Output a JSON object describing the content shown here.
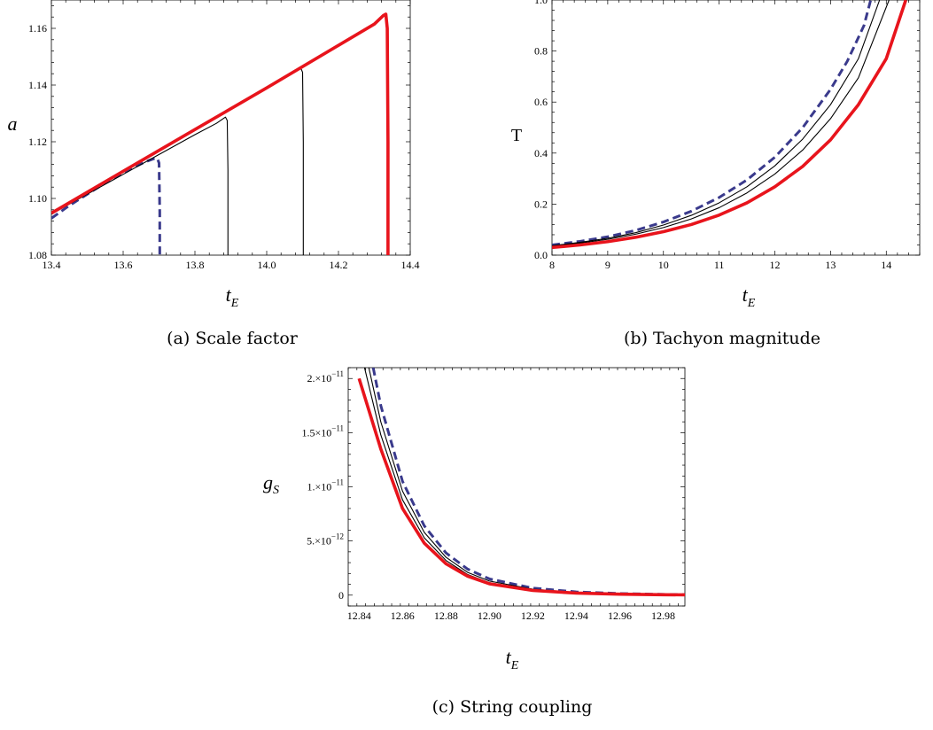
{
  "chart_data": [
    {
      "type": "line",
      "id": "a",
      "caption": "(a) Scale factor",
      "xlabel": "t",
      "xlabel_sub": "E",
      "ylabel": "a",
      "xlim": [
        13.4,
        14.4
      ],
      "ylim": [
        1.08,
        1.17
      ],
      "xticks": [
        13.4,
        13.6,
        13.8,
        14.0,
        14.2,
        14.4
      ],
      "xtick_labels": [
        "13.4",
        "13.6",
        "13.8",
        "14.0",
        "14.2",
        "14.4"
      ],
      "yticks": [
        1.08,
        1.1,
        1.12,
        1.14,
        1.16
      ],
      "ytick_labels": [
        "1.08",
        "1.10",
        "1.12",
        "1.14",
        "1.16"
      ],
      "grid": false,
      "series": [
        {
          "style": "dashed-blue",
          "color": "#3a3a8c",
          "x": [
            13.4,
            13.45,
            13.5,
            13.55,
            13.6,
            13.63,
            13.66,
            13.685,
            13.695,
            13.7,
            13.702,
            13.702
          ],
          "y": [
            1.093,
            1.0975,
            1.1015,
            1.1055,
            1.109,
            1.111,
            1.1128,
            1.114,
            1.1142,
            1.1125,
            1.095,
            1.08
          ]
        },
        {
          "style": "thin-black",
          "color": "#000000",
          "x": [
            13.4,
            13.5,
            13.6,
            13.7,
            13.8,
            13.86,
            13.885,
            13.89,
            13.892,
            13.892
          ],
          "y": [
            1.0945,
            1.1015,
            1.1085,
            1.1155,
            1.1225,
            1.1265,
            1.1287,
            1.1275,
            1.11,
            1.08
          ]
        },
        {
          "style": "thin-black",
          "color": "#000000",
          "x": [
            13.4,
            13.6,
            13.8,
            14.0,
            14.07,
            14.095,
            14.1,
            14.102,
            14.102
          ],
          "y": [
            1.0948,
            1.1095,
            1.124,
            1.139,
            1.1443,
            1.146,
            1.1445,
            1.12,
            1.08
          ]
        },
        {
          "style": "thick-red",
          "color": "#e8141c",
          "x": [
            13.4,
            13.6,
            13.8,
            14.0,
            14.2,
            14.3,
            14.325,
            14.332,
            14.336,
            14.338,
            14.338
          ],
          "y": [
            1.0948,
            1.1096,
            1.1243,
            1.139,
            1.154,
            1.1615,
            1.1645,
            1.165,
            1.16,
            1.12,
            1.08
          ]
        }
      ]
    },
    {
      "type": "line",
      "id": "b",
      "caption": "(b) Tachyon magnitude",
      "xlabel": "t",
      "xlabel_sub": "E",
      "ylabel": "T",
      "xlim": [
        8,
        14.6
      ],
      "ylim": [
        0,
        1
      ],
      "xticks": [
        8,
        9,
        10,
        11,
        12,
        13,
        14
      ],
      "xtick_labels": [
        "8",
        "9",
        "10",
        "11",
        "12",
        "13",
        "14"
      ],
      "yticks": [
        0,
        0.2,
        0.4,
        0.6,
        0.8,
        1.0
      ],
      "ytick_labels": [
        "0.0",
        "0.2",
        "0.4",
        "0.6",
        "0.8",
        "1.0"
      ],
      "grid": false,
      "series": [
        {
          "style": "dashed-blue",
          "color": "#3a3a8c",
          "x": [
            8,
            8.5,
            9,
            9.5,
            10,
            10.5,
            11,
            11.5,
            12,
            12.5,
            13,
            13.3,
            13.6,
            13.72
          ],
          "y": [
            0.04,
            0.054,
            0.072,
            0.097,
            0.13,
            0.172,
            0.226,
            0.295,
            0.384,
            0.5,
            0.65,
            0.76,
            0.9,
            1.0
          ]
        },
        {
          "style": "thin-black",
          "color": "#000000",
          "x": [
            8,
            8.5,
            9,
            9.5,
            10,
            10.5,
            11,
            11.5,
            12,
            12.5,
            13,
            13.5,
            13.88
          ],
          "y": [
            0.037,
            0.05,
            0.066,
            0.088,
            0.118,
            0.156,
            0.205,
            0.268,
            0.35,
            0.455,
            0.59,
            0.77,
            1.0
          ]
        },
        {
          "style": "thin-black",
          "color": "#000000",
          "x": [
            8,
            8.5,
            9,
            9.5,
            10,
            10.5,
            11,
            11.5,
            12,
            12.5,
            13,
            13.5,
            14.05
          ],
          "y": [
            0.035,
            0.047,
            0.062,
            0.082,
            0.108,
            0.142,
            0.186,
            0.244,
            0.318,
            0.412,
            0.535,
            0.695,
            1.0
          ]
        },
        {
          "style": "thick-red",
          "color": "#e8141c",
          "x": [
            8,
            8.5,
            9,
            9.5,
            10,
            10.5,
            11,
            11.5,
            12,
            12.5,
            13,
            13.5,
            14,
            14.35
          ],
          "y": [
            0.03,
            0.04,
            0.053,
            0.07,
            0.092,
            0.12,
            0.157,
            0.205,
            0.268,
            0.348,
            0.452,
            0.59,
            0.77,
            1.0
          ]
        }
      ]
    },
    {
      "type": "line",
      "id": "c",
      "caption": "(c) String coupling",
      "xlabel": "t",
      "xlabel_sub": "E",
      "ylabel": "g",
      "ylabel_sub": "S",
      "xlim": [
        12.835,
        12.99
      ],
      "ylim": [
        -1e-12,
        2.1e-11
      ],
      "xticks": [
        12.84,
        12.86,
        12.88,
        12.9,
        12.92,
        12.94,
        12.96,
        12.98
      ],
      "xtick_labels": [
        "12.84",
        "12.86",
        "12.88",
        "12.90",
        "12.92",
        "12.94",
        "12.96",
        "12.98"
      ],
      "yticks": [
        0,
        5e-12,
        1e-11,
        1.5e-11,
        2e-11
      ],
      "ytick_labels": [
        {
          "mantissa": "0",
          "exp": ""
        },
        {
          "mantissa": "5.×10",
          "exp": "−12"
        },
        {
          "mantissa": "1.×10",
          "exp": "−11"
        },
        {
          "mantissa": "1.5×10",
          "exp": "−11"
        },
        {
          "mantissa": "2.×10",
          "exp": "−11"
        }
      ],
      "grid": false,
      "series": [
        {
          "style": "dashed-blue",
          "color": "#3a3a8c",
          "x": [
            12.8465,
            12.85,
            12.86,
            12.87,
            12.88,
            12.89,
            12.9,
            12.92,
            12.94,
            12.96,
            12.98,
            12.99
          ],
          "y": [
            2.1e-11,
            1.75e-11,
            1.05e-11,
            6.4e-12,
            3.9e-12,
            2.4e-12,
            1.5e-12,
            6.5e-13,
            3e-13,
            1.5e-13,
            7e-14,
            5e-14
          ]
        },
        {
          "style": "thin-black",
          "color": "#000000",
          "x": [
            12.8445,
            12.85,
            12.86,
            12.87,
            12.88,
            12.89,
            12.9,
            12.92,
            12.94,
            12.96,
            12.98,
            12.99
          ],
          "y": [
            2.1e-11,
            1.6e-11,
            9.6e-12,
            5.8e-12,
            3.5e-12,
            2.1e-12,
            1.3e-12,
            5.5e-13,
            2.5e-13,
            1.2e-13,
            6e-14,
            4e-14
          ]
        },
        {
          "style": "thin-black",
          "color": "#000000",
          "x": [
            12.8425,
            12.85,
            12.86,
            12.87,
            12.88,
            12.89,
            12.9,
            12.92,
            12.94,
            12.96,
            12.98,
            12.99
          ],
          "y": [
            2.1e-11,
            1.48e-11,
            8.8e-12,
            5.3e-12,
            3.2e-12,
            1.9e-12,
            1.15e-12,
            4.8e-13,
            2.2e-13,
            1e-13,
            5e-14,
            3e-14
          ]
        },
        {
          "style": "thick-red",
          "color": "#e8141c",
          "x": [
            12.84,
            12.85,
            12.86,
            12.87,
            12.88,
            12.89,
            12.9,
            12.92,
            12.94,
            12.96,
            12.98,
            12.99
          ],
          "y": [
            2e-11,
            1.35e-11,
            8e-12,
            4.8e-12,
            2.9e-12,
            1.75e-12,
            1.05e-12,
            4.3e-13,
            1.9e-13,
            9e-14,
            4e-14,
            2.5e-14
          ]
        }
      ]
    }
  ]
}
